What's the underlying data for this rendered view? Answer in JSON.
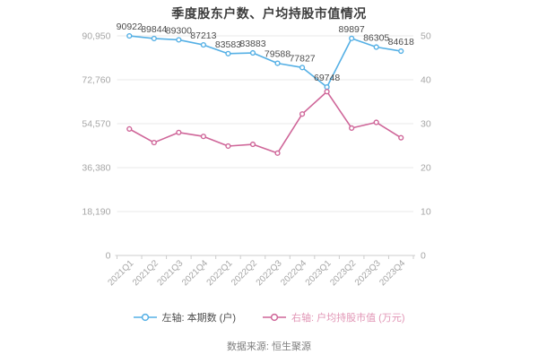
{
  "title": "季度股东户数、户均持股市值情况",
  "footer": "数据来源: 恒生聚源",
  "colors": {
    "series_blue": "#55b0e5",
    "series_pink": "#cf6699",
    "grid_line": "#eaeaea",
    "axis_line": "#cccccc",
    "axis_label": "#a6a6a6",
    "data_label": "#4c4c4c",
    "title_text": "#3d3d3d",
    "footer_text": "#7f7f7f"
  },
  "legend": [
    {
      "label": "左轴: 本期数 (户)",
      "color": "#55b0e5",
      "text_color": "#4c4c4c"
    },
    {
      "label": "右轴: 户均持股市值 (万元)",
      "color": "#cf6699",
      "text_color": "#e195b5"
    }
  ],
  "chart_data": {
    "type": "line",
    "title": "季度股东户数、户均持股市值情况",
    "categories": [
      "2021Q1",
      "2021Q2",
      "2021Q3",
      "2021Q4",
      "2022Q1",
      "2022Q2",
      "2022Q3",
      "2022Q4",
      "2023Q1",
      "2023Q2",
      "2023Q3",
      "2023Q4"
    ],
    "series": [
      {
        "name": "本期数 (户)",
        "axis": "left",
        "color": "#55b0e5",
        "show_labels": true,
        "values": [
          90922,
          89844,
          89300,
          87213,
          83583,
          83883,
          79588,
          77827,
          69748,
          89897,
          86305,
          84618
        ]
      },
      {
        "name": "户均持股市值 (万元)",
        "axis": "right",
        "color": "#cf6699",
        "show_labels": false,
        "values": [
          28.8,
          25.7,
          28.0,
          27.1,
          24.9,
          25.3,
          23.3,
          32.2,
          37.3,
          29.0,
          30.3,
          26.8
        ]
      }
    ],
    "left_axis": {
      "tick_labels": [
        "90,950",
        "72,760",
        "54,570",
        "36,380",
        "18,190",
        "0"
      ],
      "tick_values": [
        90950,
        72760,
        54570,
        36380,
        18190,
        0
      ],
      "min": 0,
      "max": 90950
    },
    "right_axis": {
      "tick_labels": [
        "50",
        "40",
        "30",
        "20",
        "10",
        "0"
      ],
      "tick_values": [
        50,
        40,
        30,
        20,
        10,
        0
      ],
      "min": 0,
      "max": 50
    },
    "grid": true,
    "legend_position": "bottom",
    "x_label_rotation": -45
  }
}
